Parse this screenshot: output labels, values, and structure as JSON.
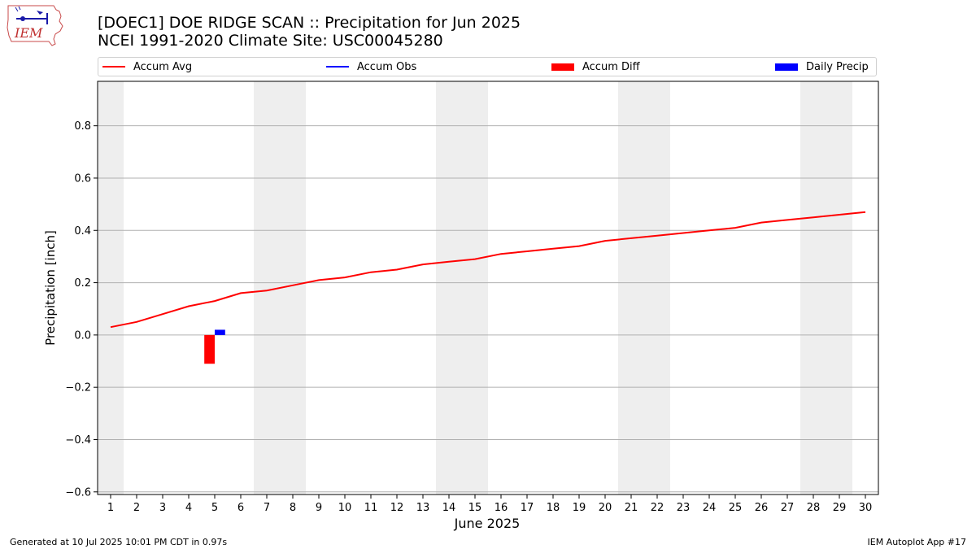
{
  "title": "[DOEC1] DOE RIDGE SCAN :: Precipitation for Jun 2025",
  "subtitle": "NCEI 1991-2020 Climate Site: USC00045280",
  "logo_text": "IEM",
  "footer_left": "Generated at 10 Jul 2025 10:01 PM CDT in 0.97s",
  "footer_right": "IEM Autoplot App #17",
  "colors": {
    "avg": "#ff0000",
    "obs": "#0000ff",
    "diff": "#ff0000",
    "daily": "#0000ff",
    "weekend": "#eeeeee",
    "grid": "#b0b0b0"
  },
  "chart_data": {
    "type": "line",
    "xlabel": "June 2025",
    "ylabel": "Precipitation [inch]",
    "xlim": [
      0.5,
      30.5
    ],
    "ylim": [
      -0.61,
      0.97
    ],
    "x_ticks": [
      1,
      2,
      3,
      4,
      5,
      6,
      7,
      8,
      9,
      10,
      11,
      12,
      13,
      14,
      15,
      16,
      17,
      18,
      19,
      20,
      21,
      22,
      23,
      24,
      25,
      26,
      27,
      28,
      29,
      30
    ],
    "y_ticks": [
      -0.6,
      -0.4,
      -0.2,
      0.0,
      0.2,
      0.4,
      0.6,
      0.8
    ],
    "y_tick_labels": [
      "−0.6",
      "−0.4",
      "−0.2",
      "0.0",
      "0.2",
      "0.4",
      "0.6",
      "0.8"
    ],
    "grid": "horizontal",
    "legend_position": "top",
    "shaded_days": [
      [
        0.5,
        1.5
      ],
      [
        6.5,
        8.5
      ],
      [
        13.5,
        15.5
      ],
      [
        20.5,
        22.5
      ],
      [
        27.5,
        29.5
      ]
    ],
    "series": [
      {
        "name": "Accum Avg",
        "kind": "line",
        "x": [
          1,
          2,
          3,
          4,
          5,
          6,
          7,
          8,
          9,
          10,
          11,
          12,
          13,
          14,
          15,
          16,
          17,
          18,
          19,
          20,
          21,
          22,
          23,
          24,
          25,
          26,
          27,
          28,
          29,
          30
        ],
        "values": [
          0.03,
          0.05,
          0.08,
          0.11,
          0.13,
          0.16,
          0.17,
          0.19,
          0.21,
          0.22,
          0.24,
          0.25,
          0.27,
          0.28,
          0.29,
          0.31,
          0.32,
          0.33,
          0.34,
          0.36,
          0.37,
          0.38,
          0.39,
          0.4,
          0.41,
          0.43,
          0.44,
          0.45,
          0.46,
          0.47
        ]
      },
      {
        "name": "Accum Obs",
        "kind": "line",
        "x": [],
        "values": []
      },
      {
        "name": "Accum Diff",
        "kind": "bar",
        "x": [
          5
        ],
        "values": [
          -0.11
        ]
      },
      {
        "name": "Daily Precip",
        "kind": "bar",
        "x": [
          5
        ],
        "values": [
          0.02
        ]
      }
    ]
  }
}
